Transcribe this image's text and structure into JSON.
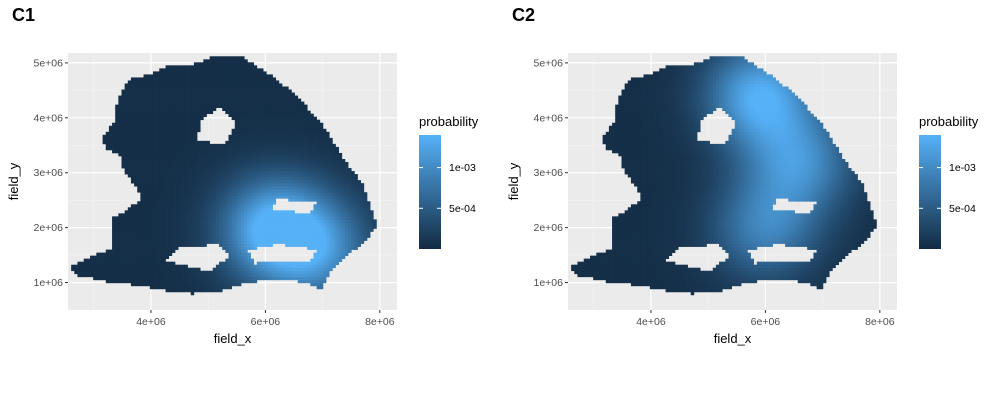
{
  "colors": {
    "panel_bg": "#ebebeb",
    "grid_major": "#ffffff",
    "grid_minor": "#f4f4f4",
    "low": "#132b43",
    "high": "#56b1f7",
    "tick_text": "#4d4d4d"
  },
  "chart_data": [
    {
      "type": "heatmap",
      "title": "C1",
      "xlabel": "field_x",
      "ylabel": "field_y",
      "xlim": [
        2550000,
        8300000
      ],
      "ylim": [
        500000,
        5180000
      ],
      "x_ticks": [
        4000000,
        6000000,
        8000000
      ],
      "x_tick_labels": [
        "4e+06",
        "6e+06",
        "8e+06"
      ],
      "y_ticks": [
        1000000,
        2000000,
        3000000,
        4000000,
        5000000
      ],
      "y_tick_labels": [
        "1e+06",
        "2e+06",
        "3e+06",
        "4e+06",
        "5e+06"
      ],
      "grid": true,
      "legend": {
        "title": "probability",
        "position": "right",
        "range": [
          0,
          0.0014
        ],
        "breaks": [
          0.0005,
          0.001
        ],
        "labels": [
          "5e-04",
          "1e-03"
        ]
      },
      "hotspots": [
        {
          "x": 6150000,
          "y": 1980000,
          "value": 0.00136
        },
        {
          "x": 6900000,
          "y": 1600000,
          "value": 0.0009
        }
      ]
    },
    {
      "type": "heatmap",
      "title": "C2",
      "xlabel": "field_x",
      "ylabel": "field_y",
      "xlim": [
        2550000,
        8300000
      ],
      "ylim": [
        500000,
        5180000
      ],
      "x_ticks": [
        4000000,
        6000000,
        8000000
      ],
      "x_tick_labels": [
        "4e+06",
        "6e+06",
        "8e+06"
      ],
      "y_ticks": [
        1000000,
        2000000,
        3000000,
        4000000,
        5000000
      ],
      "y_tick_labels": [
        "1e+06",
        "2e+06",
        "3e+06",
        "4e+06",
        "5e+06"
      ],
      "grid": true,
      "legend": {
        "title": "probability",
        "position": "right",
        "range": [
          0,
          0.0014
        ],
        "breaks": [
          0.0005,
          0.001
        ],
        "labels": [
          "5e-04",
          "1e-03"
        ]
      },
      "hotspots": [
        {
          "x": 5900000,
          "y": 4400000,
          "value": 0.0013
        },
        {
          "x": 6600000,
          "y": 3200000,
          "value": 0.00095
        },
        {
          "x": 6000000,
          "y": 2000000,
          "value": 0.00085
        }
      ]
    }
  ]
}
